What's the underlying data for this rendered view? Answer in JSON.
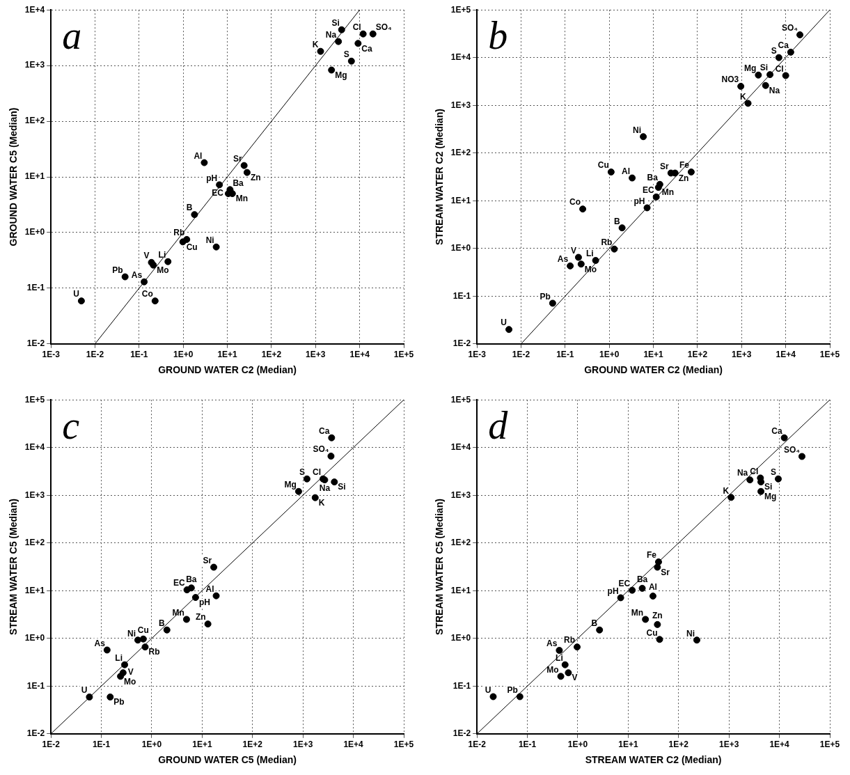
{
  "chart_data": [
    {
      "type": "scatter",
      "title": "a",
      "xlabel": "GROUND WATER C2 (Median)",
      "ylabel": "GROUND WATER C5 (Median)",
      "log": "xy",
      "grid": true,
      "marker": "circle",
      "xlim": [
        0.001,
        100000
      ],
      "ylim": [
        0.01,
        10000
      ],
      "xticks": [
        {
          "value": 0.001,
          "label": "1E-3"
        },
        {
          "value": 0.01,
          "label": "1E-2"
        },
        {
          "value": 0.1,
          "label": "1E-1"
        },
        {
          "value": 1,
          "label": "1E+0"
        },
        {
          "value": 10,
          "label": "1E+1"
        },
        {
          "value": 100,
          "label": "1E+2"
        },
        {
          "value": 1000,
          "label": "1E+3"
        },
        {
          "value": 10000,
          "label": "1E+4"
        },
        {
          "value": 100000,
          "label": "1E+5"
        }
      ],
      "yticks": [
        {
          "value": 0.01,
          "label": "1E-2"
        },
        {
          "value": 0.1,
          "label": "1E-1"
        },
        {
          "value": 1,
          "label": "1E+0"
        },
        {
          "value": 10,
          "label": "1E+1"
        },
        {
          "value": 100,
          "label": "1E+2"
        },
        {
          "value": 1000,
          "label": "1E+3"
        },
        {
          "value": 10000,
          "label": "1E+4"
        }
      ],
      "series": [
        {
          "color": "#000000",
          "x": [
            3900,
            3300,
            12000,
            20000,
            9200,
            1300,
            6500,
            2300,
            3.0,
            24,
            28,
            6.6,
            11.5,
            10.5,
            13,
            1.8,
            1.2,
            0.98,
            5.6,
            0.45,
            0.19,
            0.21,
            0.13,
            0.048,
            0.0049,
            0.23
          ],
          "values": [
            4400,
            2700,
            3700,
            3700,
            2500,
            1800,
            1200,
            830,
            18,
            16,
            12,
            7.2,
            5.9,
            5.0,
            5.0,
            2.1,
            0.75,
            0.68,
            0.55,
            0.3,
            0.29,
            0.26,
            0.13,
            0.16,
            0.059,
            0.059
          ]
        },
        {
          "type": "line",
          "color": "#000000",
          "marker": "none",
          "line_style": "solid",
          "x": [
            0.01,
            10000
          ],
          "values": [
            0.01,
            10000
          ]
        }
      ],
      "annotations": [
        {
          "text": "Si",
          "x": 3900,
          "y": 4400
        },
        {
          "text": "Na",
          "x": 3300,
          "y": 2700
        },
        {
          "text": "Cl",
          "x": 12000,
          "y": 3700
        },
        {
          "text": "SO₄",
          "x": 20000,
          "y": 3700
        },
        {
          "text": "Ca",
          "x": 9200,
          "y": 2500
        },
        {
          "text": "K",
          "x": 1300,
          "y": 1800
        },
        {
          "text": "S",
          "x": 6500,
          "y": 1200
        },
        {
          "text": "Mg",
          "x": 2300,
          "y": 830
        },
        {
          "text": "Al",
          "x": 3.0,
          "y": 18
        },
        {
          "text": "Sr",
          "x": 24,
          "y": 16
        },
        {
          "text": "Zn",
          "x": 28,
          "y": 12
        },
        {
          "text": "pH",
          "x": 6.6,
          "y": 7.2
        },
        {
          "text": "Ba",
          "x": 11.5,
          "y": 5.9
        },
        {
          "text": "EC",
          "x": 10.5,
          "y": 5.0
        },
        {
          "text": "Mn",
          "x": 13,
          "y": 5.0
        },
        {
          "text": "B",
          "x": 1.8,
          "y": 2.1
        },
        {
          "text": "Rb",
          "x": 1.2,
          "y": 0.75
        },
        {
          "text": "Cu",
          "x": 0.98,
          "y": 0.68
        },
        {
          "text": "Ni",
          "x": 5.6,
          "y": 0.55
        },
        {
          "text": "Li",
          "x": 0.45,
          "y": 0.3
        },
        {
          "text": "V",
          "x": 0.19,
          "y": 0.29
        },
        {
          "text": "Mo",
          "x": 0.21,
          "y": 0.26
        },
        {
          "text": "As",
          "x": 0.13,
          "y": 0.13
        },
        {
          "text": "Pb",
          "x": 0.048,
          "y": 0.16
        },
        {
          "text": "U",
          "x": 0.0049,
          "y": 0.059
        },
        {
          "text": "Co",
          "x": 0.23,
          "y": 0.059
        }
      ]
    },
    {
      "type": "scatter",
      "title": "b",
      "xlabel": "GROUND WATER C2 (Median)",
      "ylabel": "STREAM WATER C2 (Median)",
      "log": "xy",
      "grid": true,
      "marker": "circle",
      "xlim": [
        0.001,
        100000
      ],
      "ylim": [
        0.01,
        100000
      ],
      "xticks": [
        {
          "value": 0.001,
          "label": "1E-3"
        },
        {
          "value": 0.01,
          "label": "1E-2"
        },
        {
          "value": 0.1,
          "label": "1E-1"
        },
        {
          "value": 1,
          "label": "1E+0"
        },
        {
          "value": 10,
          "label": "1E+1"
        },
        {
          "value": 100,
          "label": "1E+2"
        },
        {
          "value": 1000,
          "label": "1E+3"
        },
        {
          "value": 10000,
          "label": "1E+4"
        },
        {
          "value": 100000,
          "label": "1E+5"
        }
      ],
      "yticks": [
        {
          "value": 0.01,
          "label": "1E-2"
        },
        {
          "value": 0.1,
          "label": "1E-1"
        },
        {
          "value": 1,
          "label": "1E+0"
        },
        {
          "value": 10,
          "label": "1E+1"
        },
        {
          "value": 100,
          "label": "1E+2"
        },
        {
          "value": 1000,
          "label": "1E+3"
        },
        {
          "value": 10000,
          "label": "1E+4"
        },
        {
          "value": 100000,
          "label": "1E+5"
        }
      ],
      "series": [
        {
          "color": "#000000",
          "x": [
            21000,
            13000,
            7000,
            4400,
            2400,
            10000,
            960,
            3500,
            1400,
            5.9,
            1.1,
            3.3,
            25,
            31,
            72,
            14,
            13,
            11.6,
            7.2,
            0.25,
            1.95,
            1.3,
            0.49,
            0.2,
            0.23,
            0.13,
            0.052,
            0.0053
          ],
          "values": [
            30000,
            13000,
            10000,
            4400,
            4300,
            4200,
            2500,
            2600,
            1100,
            220,
            40,
            30,
            38,
            38,
            40,
            22,
            19,
            12,
            7.1,
            6.7,
            2.7,
            0.97,
            0.56,
            0.65,
            0.47,
            0.43,
            0.071,
            0.02
          ]
        },
        {
          "type": "line",
          "color": "#000000",
          "marker": "none",
          "line_style": "solid",
          "x": [
            0.01,
            100000
          ],
          "values": [
            0.01,
            100000
          ]
        }
      ],
      "annotations": [
        {
          "text": "SO₄",
          "x": 21000,
          "y": 30000
        },
        {
          "text": "Ca",
          "x": 13000,
          "y": 13000
        },
        {
          "text": "S",
          "x": 7000,
          "y": 10000
        },
        {
          "text": "Si",
          "x": 4400,
          "y": 4400
        },
        {
          "text": "Mg",
          "x": 2400,
          "y": 4300
        },
        {
          "text": "Cl",
          "x": 10000,
          "y": 4200
        },
        {
          "text": "NO3",
          "x": 960,
          "y": 2500
        },
        {
          "text": "Na",
          "x": 3500,
          "y": 2600
        },
        {
          "text": "K",
          "x": 1400,
          "y": 1100
        },
        {
          "text": "Ni",
          "x": 5.9,
          "y": 220
        },
        {
          "text": "Cu",
          "x": 1.1,
          "y": 40
        },
        {
          "text": "Al",
          "x": 3.3,
          "y": 30
        },
        {
          "text": "Sr",
          "x": 25,
          "y": 38
        },
        {
          "text": "Zn",
          "x": 31,
          "y": 38
        },
        {
          "text": "Fe",
          "x": 72,
          "y": 40
        },
        {
          "text": "Ba",
          "x": 14,
          "y": 22
        },
        {
          "text": "Mn",
          "x": 13,
          "y": 19
        },
        {
          "text": "EC",
          "x": 11.6,
          "y": 12
        },
        {
          "text": "pH",
          "x": 7.2,
          "y": 7.1
        },
        {
          "text": "Co",
          "x": 0.25,
          "y": 6.7
        },
        {
          "text": "B",
          "x": 1.95,
          "y": 2.7
        },
        {
          "text": "Rb",
          "x": 1.3,
          "y": 0.97
        },
        {
          "text": "Li",
          "x": 0.49,
          "y": 0.56
        },
        {
          "text": "V",
          "x": 0.2,
          "y": 0.65
        },
        {
          "text": "Mo",
          "x": 0.23,
          "y": 0.47
        },
        {
          "text": "As",
          "x": 0.13,
          "y": 0.43
        },
        {
          "text": "Pb",
          "x": 0.052,
          "y": 0.071
        },
        {
          "text": "U",
          "x": 0.0053,
          "y": 0.02
        }
      ]
    },
    {
      "type": "scatter",
      "title": "c",
      "xlabel": "GROUND WATER C5 (Median)",
      "ylabel": "STREAM WATER C5 (Median)",
      "log": "xy",
      "grid": true,
      "marker": "circle",
      "xlim": [
        0.01,
        100000
      ],
      "ylim": [
        0.01,
        100000
      ],
      "xticks": [
        {
          "value": 0.01,
          "label": "1E-2"
        },
        {
          "value": 0.1,
          "label": "1E-1"
        },
        {
          "value": 1,
          "label": "1E+0"
        },
        {
          "value": 10,
          "label": "1E+1"
        },
        {
          "value": 100,
          "label": "1E+2"
        },
        {
          "value": 1000,
          "label": "1E+3"
        },
        {
          "value": 10000,
          "label": "1E+4"
        },
        {
          "value": 100000,
          "label": "1E+5"
        }
      ],
      "yticks": [
        {
          "value": 0.01,
          "label": "1E-2"
        },
        {
          "value": 0.1,
          "label": "1E-1"
        },
        {
          "value": 1,
          "label": "1E+0"
        },
        {
          "value": 10,
          "label": "1E+1"
        },
        {
          "value": 100,
          "label": "1E+2"
        },
        {
          "value": 1000,
          "label": "1E+3"
        },
        {
          "value": 10000,
          "label": "1E+4"
        },
        {
          "value": 100000,
          "label": "1E+5"
        }
      ],
      "series": [
        {
          "color": "#000000",
          "x": [
            3700,
            3600,
            2500,
            1200,
            2700,
            4200,
            820,
            1750,
            17,
            5.0,
            6.1,
            7.4,
            19,
            4.9,
            13,
            2.0,
            0.53,
            0.68,
            0.74,
            0.13,
            0.29,
            0.27,
            0.24,
            0.058,
            0.15
          ],
          "values": [
            16000,
            6600,
            2200,
            2200,
            2100,
            1900,
            1200,
            890,
            31,
            10.4,
            11.4,
            7.2,
            7.8,
            2.5,
            2.0,
            1.5,
            0.92,
            0.97,
            0.66,
            0.57,
            0.28,
            0.19,
            0.16,
            0.059,
            0.059
          ]
        },
        {
          "type": "line",
          "color": "#000000",
          "marker": "none",
          "line_style": "solid",
          "x": [
            0.01,
            100000
          ],
          "values": [
            0.01,
            100000
          ]
        }
      ],
      "annotations": [
        {
          "text": "Ca",
          "x": 3700,
          "y": 16000
        },
        {
          "text": "SO₄",
          "x": 3600,
          "y": 6600
        },
        {
          "text": "Cl",
          "x": 2500,
          "y": 2200
        },
        {
          "text": "S",
          "x": 1200,
          "y": 2200
        },
        {
          "text": "Na",
          "x": 2700,
          "y": 2100
        },
        {
          "text": "Si",
          "x": 4200,
          "y": 1900
        },
        {
          "text": "Mg",
          "x": 820,
          "y": 1200
        },
        {
          "text": "K",
          "x": 1750,
          "y": 890
        },
        {
          "text": "Sr",
          "x": 17,
          "y": 31
        },
        {
          "text": "EC",
          "x": 5.0,
          "y": 10.4
        },
        {
          "text": "Ba",
          "x": 6.1,
          "y": 11.4
        },
        {
          "text": "pH",
          "x": 7.4,
          "y": 7.2
        },
        {
          "text": "Al",
          "x": 19,
          "y": 7.8
        },
        {
          "text": "Mn",
          "x": 4.9,
          "y": 2.5
        },
        {
          "text": "Zn",
          "x": 13,
          "y": 2.0
        },
        {
          "text": "B",
          "x": 2.0,
          "y": 1.5
        },
        {
          "text": "Ni",
          "x": 0.53,
          "y": 0.92
        },
        {
          "text": "Cu",
          "x": 0.68,
          "y": 0.97
        },
        {
          "text": "Rb",
          "x": 0.74,
          "y": 0.66
        },
        {
          "text": "As",
          "x": 0.13,
          "y": 0.57
        },
        {
          "text": "Li",
          "x": 0.29,
          "y": 0.28
        },
        {
          "text": "V",
          "x": 0.27,
          "y": 0.19
        },
        {
          "text": "Mo",
          "x": 0.24,
          "y": 0.16
        },
        {
          "text": "U",
          "x": 0.058,
          "y": 0.059
        },
        {
          "text": "Pb",
          "x": 0.15,
          "y": 0.059
        }
      ]
    },
    {
      "type": "scatter",
      "title": "d",
      "xlabel": "STREAM WATER C2 (Median)",
      "ylabel": "STREAM WATER C5 (Median)",
      "log": "xy",
      "grid": true,
      "marker": "circle",
      "xlim": [
        0.01,
        100000
      ],
      "ylim": [
        0.01,
        100000
      ],
      "xticks": [
        {
          "value": 0.01,
          "label": "1E-2"
        },
        {
          "value": 0.1,
          "label": "1E-1"
        },
        {
          "value": 1,
          "label": "1E+0"
        },
        {
          "value": 10,
          "label": "1E+1"
        },
        {
          "value": 100,
          "label": "1E+2"
        },
        {
          "value": 1000,
          "label": "1E+3"
        },
        {
          "value": 10000,
          "label": "1E+4"
        },
        {
          "value": 100000,
          "label": "1E+5"
        }
      ],
      "yticks": [
        {
          "value": 0.01,
          "label": "1E-2"
        },
        {
          "value": 0.1,
          "label": "1E-1"
        },
        {
          "value": 1,
          "label": "1E+0"
        },
        {
          "value": 10,
          "label": "1E+1"
        },
        {
          "value": 100,
          "label": "1E+2"
        },
        {
          "value": 1000,
          "label": "1E+3"
        },
        {
          "value": 10000,
          "label": "1E+4"
        },
        {
          "value": 100000,
          "label": "1E+5"
        }
      ],
      "series": [
        {
          "color": "#000000",
          "x": [
            12500,
            28000,
            2600,
            4200,
            9500,
            4300,
            4300,
            1100,
            40,
            38,
            12,
            19,
            31,
            7.1,
            22,
            38,
            42,
            230,
            2.7,
            0.97,
            0.43,
            0.56,
            0.65,
            0.46,
            0.021,
            0.071
          ],
          "values": [
            16000,
            6500,
            2100,
            2300,
            2200,
            1900,
            1200,
            900,
            40,
            31,
            10.2,
            11.2,
            7.7,
            7.1,
            2.5,
            1.95,
            0.95,
            0.92,
            1.5,
            0.66,
            0.56,
            0.28,
            0.19,
            0.16,
            0.06,
            0.06
          ]
        },
        {
          "type": "line",
          "color": "#000000",
          "marker": "none",
          "line_style": "solid",
          "x": [
            0.01,
            100000
          ],
          "values": [
            0.01,
            100000
          ]
        }
      ],
      "annotations": [
        {
          "text": "Ca",
          "x": 12500,
          "y": 16000
        },
        {
          "text": "SO₄",
          "x": 28000,
          "y": 6500
        },
        {
          "text": "Na",
          "x": 2600,
          "y": 2100
        },
        {
          "text": "Cl",
          "x": 4200,
          "y": 2300
        },
        {
          "text": "S",
          "x": 9500,
          "y": 2200
        },
        {
          "text": "Si",
          "x": 4300,
          "y": 1900
        },
        {
          "text": "Mg",
          "x": 4300,
          "y": 1200
        },
        {
          "text": "K",
          "x": 1100,
          "y": 900
        },
        {
          "text": "Fe",
          "x": 40,
          "y": 40
        },
        {
          "text": "Sr",
          "x": 38,
          "y": 31
        },
        {
          "text": "EC",
          "x": 12,
          "y": 10.2
        },
        {
          "text": "Ba",
          "x": 19,
          "y": 11.2
        },
        {
          "text": "Al",
          "x": 31,
          "y": 7.7
        },
        {
          "text": "pH",
          "x": 7.1,
          "y": 7.1
        },
        {
          "text": "Mn",
          "x": 22,
          "y": 2.5
        },
        {
          "text": "Zn",
          "x": 38,
          "y": 1.95
        },
        {
          "text": "Cu",
          "x": 42,
          "y": 0.95
        },
        {
          "text": "Ni",
          "x": 230,
          "y": 0.92
        },
        {
          "text": "B",
          "x": 2.7,
          "y": 1.5
        },
        {
          "text": "Rb",
          "x": 0.97,
          "y": 0.66
        },
        {
          "text": "As",
          "x": 0.43,
          "y": 0.56
        },
        {
          "text": "Li",
          "x": 0.56,
          "y": 0.28
        },
        {
          "text": "V",
          "x": 0.65,
          "y": 0.19
        },
        {
          "text": "Mo",
          "x": 0.46,
          "y": 0.16
        },
        {
          "text": "U",
          "x": 0.021,
          "y": 0.06
        },
        {
          "text": "Pb",
          "x": 0.071,
          "y": 0.06
        }
      ]
    }
  ]
}
